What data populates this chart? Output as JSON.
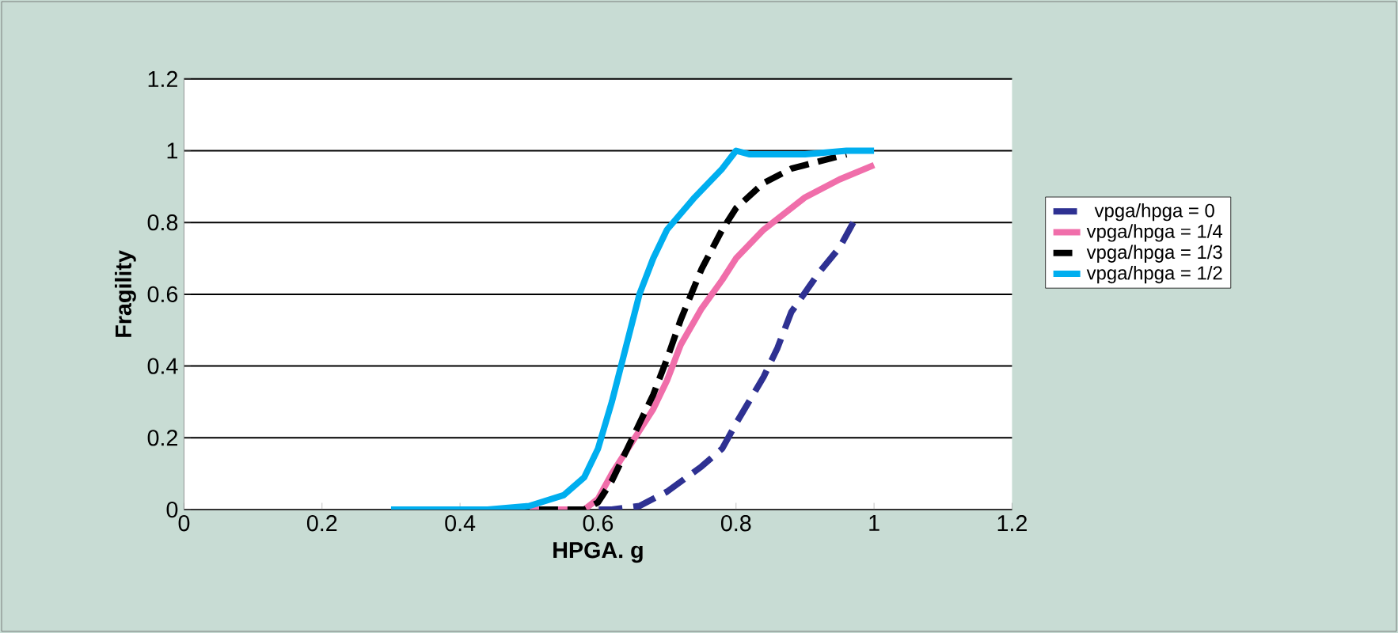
{
  "chart_data": {
    "type": "line",
    "xlabel": "HPGA. g",
    "ylabel": "Fragility",
    "xlim": [
      0,
      1.2
    ],
    "ylim": [
      0,
      1.2
    ],
    "xticks": [
      0,
      0.2,
      0.4,
      0.6,
      0.8,
      1,
      1.2
    ],
    "yticks": [
      0,
      0.2,
      0.4,
      0.6,
      0.8,
      1,
      1.2
    ],
    "grid": "y",
    "legend": "right",
    "series": [
      {
        "name": "vpga/hpga = 0",
        "color": "#2e3192",
        "line_style": "dashed",
        "x": [
          0.4,
          0.62,
          0.66,
          0.7,
          0.75,
          0.78,
          0.8,
          0.84,
          0.86,
          0.88,
          0.92,
          0.95,
          0.97
        ],
        "values": [
          0,
          0,
          0.01,
          0.05,
          0.12,
          0.17,
          0.24,
          0.37,
          0.45,
          0.55,
          0.66,
          0.73,
          0.8
        ]
      },
      {
        "name": "vpga/hpga = 1/4",
        "color": "#f06eaa",
        "line_style": "solid",
        "x": [
          0.35,
          0.58,
          0.6,
          0.62,
          0.65,
          0.68,
          0.7,
          0.72,
          0.75,
          0.78,
          0.8,
          0.84,
          0.9,
          0.95,
          1.0
        ],
        "values": [
          0,
          0,
          0.03,
          0.1,
          0.19,
          0.28,
          0.36,
          0.46,
          0.56,
          0.64,
          0.7,
          0.78,
          0.87,
          0.92,
          0.96
        ]
      },
      {
        "name": "vpga/hpga = 1/3",
        "color": "#000000",
        "line_style": "dashed",
        "x": [
          0.35,
          0.58,
          0.6,
          0.62,
          0.65,
          0.68,
          0.7,
          0.72,
          0.75,
          0.78,
          0.8,
          0.84,
          0.88,
          0.92,
          0.96
        ],
        "values": [
          0,
          0,
          0.02,
          0.08,
          0.2,
          0.32,
          0.42,
          0.53,
          0.67,
          0.78,
          0.84,
          0.91,
          0.95,
          0.97,
          0.99
        ]
      },
      {
        "name": "vpga/hpga = 1/2",
        "color": "#00aeef",
        "line_style": "solid",
        "x": [
          0.3,
          0.44,
          0.5,
          0.55,
          0.58,
          0.6,
          0.62,
          0.64,
          0.66,
          0.68,
          0.7,
          0.74,
          0.78,
          0.8,
          0.82,
          0.9,
          0.96,
          1.0
        ],
        "values": [
          0,
          0,
          0.01,
          0.04,
          0.09,
          0.17,
          0.3,
          0.45,
          0.6,
          0.7,
          0.78,
          0.87,
          0.95,
          1.0,
          0.99,
          0.99,
          1.0,
          1.0
        ]
      }
    ]
  }
}
